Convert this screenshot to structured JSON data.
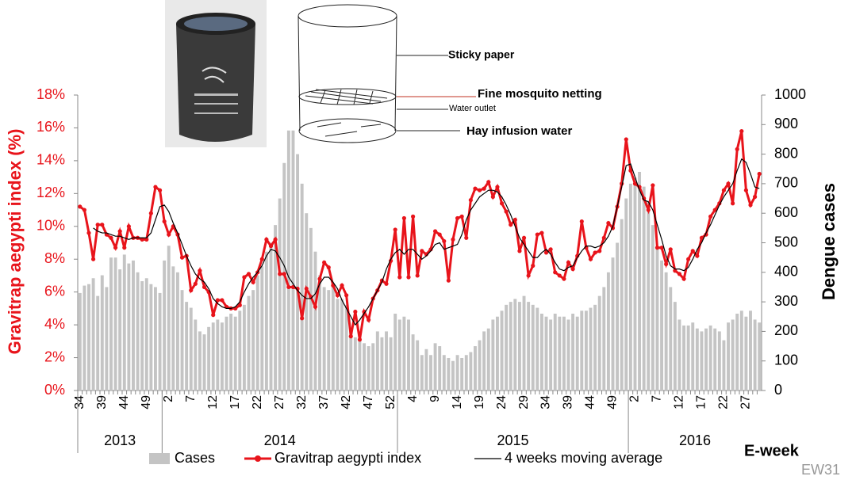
{
  "chart_data": {
    "type": "bar-line",
    "ylabel": "Gravitrap aegypti index (%)",
    "y2label": "Dengue cases",
    "xlabel": "E-week",
    "footnote": "EW31",
    "years": [
      "2013",
      "2014",
      "2015",
      "2016"
    ],
    "categories": [
      "34",
      null,
      null,
      null,
      null,
      "39",
      null,
      null,
      null,
      null,
      "44",
      null,
      null,
      null,
      null,
      "49",
      null,
      null,
      null,
      null,
      "2",
      null,
      null,
      null,
      null,
      "7",
      null,
      null,
      null,
      null,
      "12",
      null,
      null,
      null,
      null,
      "17",
      null,
      null,
      null,
      null,
      "22",
      null,
      null,
      null,
      null,
      "27",
      null,
      null,
      null,
      null,
      "32",
      null,
      null,
      null,
      null,
      "37",
      null,
      null,
      null,
      null,
      "42",
      null,
      null,
      null,
      null,
      "47",
      null,
      null,
      null,
      null,
      "52",
      null,
      null,
      null,
      null,
      "4",
      null,
      null,
      null,
      null,
      "9",
      null,
      null,
      null,
      null,
      "14",
      null,
      null,
      null,
      null,
      "19",
      null,
      null,
      null,
      null,
      "24",
      null,
      null,
      null,
      null,
      "29",
      null,
      null,
      null,
      null,
      "34",
      null,
      null,
      null,
      null,
      "39",
      null,
      null,
      null,
      null,
      "44",
      null,
      null,
      null,
      null,
      "49",
      null,
      null,
      null,
      null,
      "2",
      null,
      null,
      null,
      null,
      "7",
      null,
      null,
      null,
      null,
      "12",
      null,
      null,
      null,
      null,
      "17",
      null,
      null,
      null,
      null,
      "22",
      null,
      null,
      null,
      null,
      "27",
      null,
      null,
      null
    ],
    "ylim": [
      0,
      18
    ],
    "yticks": [
      {
        "value": 0,
        "label": "0%"
      },
      {
        "value": 2,
        "label": "2%"
      },
      {
        "value": 4,
        "label": "4%"
      },
      {
        "value": 6,
        "label": "6%"
      },
      {
        "value": 8,
        "label": "8%"
      },
      {
        "value": 10,
        "label": "10%"
      },
      {
        "value": 12,
        "label": "12%"
      },
      {
        "value": 14,
        "label": "14%"
      },
      {
        "value": 16,
        "label": "16%"
      },
      {
        "value": 18,
        "label": "18%"
      }
    ],
    "y2lim": [
      0,
      1000
    ],
    "y2ticks": [
      0,
      100,
      200,
      300,
      400,
      500,
      600,
      700,
      800,
      900,
      1000
    ],
    "series": [
      {
        "name": "Cases",
        "type": "bar",
        "axis": "y2",
        "color": "#c4c4c4",
        "values": [
          330,
          355,
          360,
          380,
          320,
          390,
          350,
          450,
          450,
          410,
          460,
          430,
          440,
          400,
          370,
          380,
          360,
          350,
          330,
          440,
          490,
          420,
          400,
          340,
          300,
          280,
          240,
          200,
          190,
          215,
          230,
          240,
          230,
          250,
          260,
          250,
          270,
          290,
          320,
          340,
          390,
          420,
          470,
          500,
          560,
          650,
          770,
          880,
          880,
          800,
          700,
          600,
          550,
          470,
          390,
          350,
          340,
          350,
          310,
          310,
          290,
          200,
          180,
          170,
          160,
          150,
          160,
          200,
          180,
          200,
          180,
          260,
          240,
          250,
          240,
          190,
          170,
          120,
          140,
          120,
          160,
          150,
          120,
          110,
          100,
          120,
          110,
          120,
          130,
          150,
          170,
          200,
          210,
          240,
          250,
          270,
          290,
          300,
          310,
          300,
          320,
          300,
          290,
          280,
          260,
          250,
          240,
          260,
          250,
          250,
          240,
          260,
          250,
          270,
          270,
          280,
          290,
          320,
          350,
          400,
          450,
          500,
          580,
          650,
          700,
          720,
          740,
          690,
          640,
          560,
          480,
          440,
          400,
          350,
          300,
          240,
          220,
          220,
          230,
          210,
          200,
          210,
          220,
          210,
          200,
          170,
          230,
          240,
          260,
          270,
          250,
          270,
          240,
          230
        ]
      },
      {
        "name": "Gravitrap aegypti index",
        "type": "line",
        "marker": true,
        "color": "#e8141b",
        "values": [
          11.2,
          11.0,
          9.6,
          8.0,
          10.1,
          10.1,
          9.5,
          9.3,
          8.7,
          9.7,
          8.7,
          10.0,
          9.3,
          9.3,
          9.2,
          9.2,
          10.8,
          12.4,
          12.2,
          10.3,
          9.5,
          10.0,
          9.5,
          8.1,
          8.2,
          6.1,
          6.5,
          7.3,
          6.3,
          6.0,
          4.6,
          5.5,
          5.5,
          5.1,
          5.0,
          5.0,
          5.2,
          6.9,
          7.1,
          6.6,
          7.2,
          8.0,
          9.2,
          8.8,
          9.2,
          7.1,
          7.1,
          6.3,
          6.3,
          6.2,
          4.4,
          6.2,
          5.7,
          5.1,
          6.8,
          7.8,
          7.5,
          6.4,
          5.8,
          6.4,
          5.8,
          3.3,
          4.8,
          3.1,
          4.8,
          4.3,
          5.6,
          6.1,
          6.7,
          6.5,
          7.9,
          9.8,
          6.9,
          10.5,
          6.9,
          10.6,
          7.0,
          8.5,
          8.3,
          8.6,
          9.7,
          9.5,
          9.1,
          6.7,
          9.2,
          10.5,
          10.6,
          9.3,
          11.6,
          12.3,
          12.2,
          12.3,
          12.7,
          11.8,
          12.4,
          11.4,
          10.9,
          10.1,
          10.4,
          8.5,
          9.3,
          7.0,
          7.6,
          9.5,
          9.6,
          8.4,
          8.6,
          7.2,
          7.0,
          6.8,
          7.8,
          7.4,
          8.2,
          10.3,
          8.7,
          8.0,
          8.4,
          8.5,
          9.3,
          10.2,
          9.9,
          11.2,
          12.6,
          15.3,
          13.4,
          12.6,
          12.4,
          11.7,
          11.0,
          12.5,
          8.7,
          8.7,
          7.7,
          8.6,
          7.3,
          7.1,
          6.8,
          8.0,
          8.5,
          8.2,
          9.3,
          9.5,
          10.6,
          11.0,
          11.4,
          12.2,
          12.6,
          11.4,
          14.7,
          15.8,
          12.2,
          11.3,
          11.8,
          13.2
        ]
      },
      {
        "name": "4 weeks moving average",
        "type": "line",
        "marker": false,
        "color": "#000000",
        "values": [
          null,
          null,
          null,
          9.9,
          9.7,
          9.6,
          9.6,
          9.5,
          9.4,
          9.4,
          9.3,
          9.2,
          9.3,
          9.3,
          9.3,
          9.3,
          9.6,
          10.4,
          11.2,
          11.3,
          10.9,
          10.2,
          9.6,
          8.9,
          8.2,
          7.6,
          7.1,
          6.8,
          6.6,
          6.2,
          5.6,
          5.3,
          5.1,
          5.0,
          5.0,
          5.1,
          5.4,
          6.0,
          6.5,
          6.9,
          7.2,
          7.6,
          8.2,
          8.6,
          8.5,
          8.1,
          7.6,
          6.9,
          6.5,
          6.1,
          5.8,
          5.6,
          5.6,
          5.9,
          6.5,
          6.9,
          6.9,
          6.6,
          6.2,
          5.5,
          5.0,
          4.5,
          4.0,
          4.3,
          4.7,
          5.1,
          5.6,
          6.1,
          6.6,
          7.4,
          8.0,
          8.4,
          8.6,
          8.3,
          8.6,
          8.6,
          8.3,
          8.0,
          8.2,
          8.5,
          8.9,
          9.0,
          8.6,
          8.7,
          8.8,
          8.9,
          9.5,
          10.4,
          11.0,
          11.4,
          11.8,
          12.0,
          12.2,
          12.2,
          12.1,
          11.8,
          11.3,
          10.7,
          10.0,
          9.3,
          8.9,
          8.5,
          8.1,
          8.1,
          8.4,
          8.6,
          8.3,
          7.8,
          7.4,
          7.3,
          7.5,
          7.6,
          8.1,
          8.5,
          8.8,
          8.8,
          8.7,
          8.8,
          9.0,
          9.4,
          10.0,
          11.2,
          12.4,
          13.7,
          13.8,
          13.0,
          12.2,
          11.6,
          11.5,
          11.0,
          10.1,
          9.2,
          8.2,
          7.6,
          7.4,
          7.4,
          7.3,
          7.5,
          8.0,
          8.6,
          9.0,
          9.6,
          10.1,
          10.7,
          11.3,
          11.8,
          12.2,
          12.6,
          13.4,
          14.1,
          13.9,
          13.2,
          12.4,
          12.3
        ]
      }
    ]
  },
  "diagram": {
    "labels": [
      "Sticky paper",
      "Fine mosquito netting",
      "Water outlet",
      "Hay infusion water"
    ]
  }
}
